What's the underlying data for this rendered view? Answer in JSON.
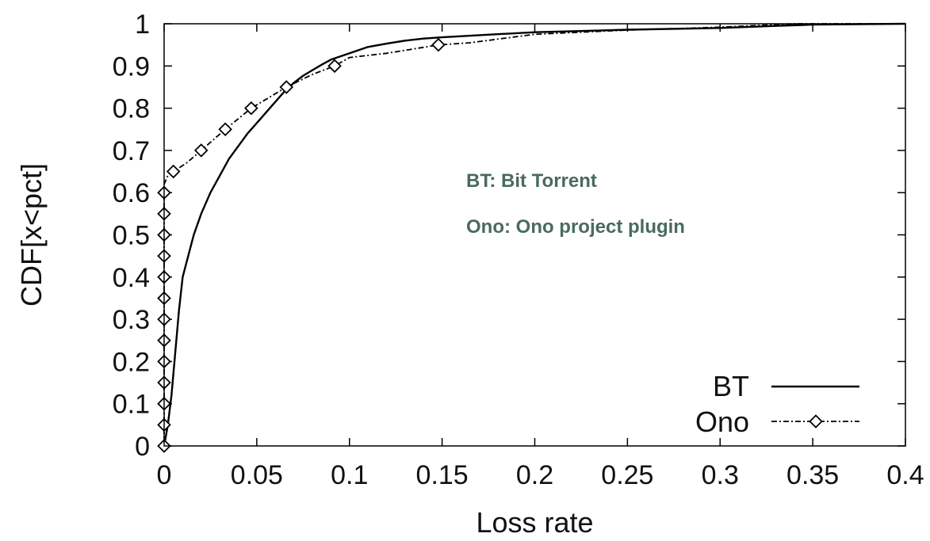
{
  "chart_data": {
    "type": "line",
    "title": "",
    "xlabel": "Loss rate",
    "ylabel": "CDF[x<pct]",
    "xlim": [
      0,
      0.4
    ],
    "ylim": [
      0,
      1
    ],
    "x_ticks": [
      0,
      0.05,
      0.1,
      0.15,
      0.2,
      0.25,
      0.3,
      0.35,
      0.4
    ],
    "x_tick_labels": [
      "0",
      "0.05",
      "0.1",
      "0.15",
      "0.2",
      "0.25",
      "0.3",
      "0.35",
      "0.4"
    ],
    "y_ticks": [
      0,
      0.1,
      0.2,
      0.3,
      0.4,
      0.5,
      0.6,
      0.7,
      0.8,
      0.9,
      1
    ],
    "y_tick_labels": [
      "0",
      "0.1",
      "0.2",
      "0.3",
      "0.4",
      "0.5",
      "0.6",
      "0.7",
      "0.8",
      "0.9",
      "1"
    ],
    "grid": false,
    "legend_position": "bottom-right",
    "series": [
      {
        "name": "BT",
        "style": "solid",
        "marker": "none",
        "color": "#000000",
        "x": [
          0,
          0.002,
          0.004,
          0.006,
          0.008,
          0.01,
          0.013,
          0.016,
          0.02,
          0.025,
          0.03,
          0.035,
          0.04,
          0.045,
          0.05,
          0.055,
          0.06,
          0.065,
          0.07,
          0.075,
          0.08,
          0.085,
          0.09,
          0.1,
          0.11,
          0.12,
          0.13,
          0.14,
          0.15,
          0.17,
          0.2,
          0.25,
          0.3,
          0.33,
          0.35,
          0.4
        ],
        "y": [
          0.0,
          0.05,
          0.12,
          0.22,
          0.32,
          0.4,
          0.45,
          0.5,
          0.55,
          0.6,
          0.64,
          0.68,
          0.71,
          0.74,
          0.765,
          0.79,
          0.815,
          0.84,
          0.86,
          0.877,
          0.89,
          0.903,
          0.915,
          0.93,
          0.945,
          0.953,
          0.96,
          0.965,
          0.968,
          0.973,
          0.98,
          0.986,
          0.99,
          0.995,
          0.998,
          1.0
        ]
      },
      {
        "name": "Ono",
        "style": "dash-dot",
        "marker": "diamond",
        "color": "#000000",
        "x": [
          0,
          0,
          0,
          0,
          0,
          0,
          0,
          0,
          0,
          0,
          0,
          0,
          0,
          0,
          0.002,
          0.005,
          0.012,
          0.02,
          0.033,
          0.047,
          0.066,
          0.08,
          0.092,
          0.1,
          0.12,
          0.148,
          0.165,
          0.2,
          0.25,
          0.3,
          0.34,
          0.4
        ],
        "y": [
          0,
          0.05,
          0.1,
          0.15,
          0.2,
          0.25,
          0.3,
          0.35,
          0.4,
          0.45,
          0.5,
          0.55,
          0.6,
          0.62,
          0.64,
          0.65,
          0.67,
          0.7,
          0.75,
          0.8,
          0.85,
          0.88,
          0.9,
          0.92,
          0.93,
          0.95,
          0.955,
          0.975,
          0.985,
          0.992,
          1.0,
          1.0
        ],
        "marker_x": [
          0,
          0,
          0,
          0,
          0,
          0,
          0,
          0,
          0,
          0,
          0,
          0,
          0,
          0.005,
          0.02,
          0.033,
          0.047,
          0.066,
          0.092,
          0.148
        ],
        "marker_y": [
          0,
          0.05,
          0.1,
          0.15,
          0.2,
          0.25,
          0.3,
          0.35,
          0.4,
          0.45,
          0.5,
          0.55,
          0.6,
          0.65,
          0.7,
          0.75,
          0.8,
          0.85,
          0.9,
          0.95
        ]
      }
    ],
    "annotations": [
      {
        "text": "BT: Bit Torrent",
        "color": "#4a6b5c"
      },
      {
        "text": "Ono: Ono project plugin",
        "color": "#4a6b5c"
      }
    ]
  }
}
